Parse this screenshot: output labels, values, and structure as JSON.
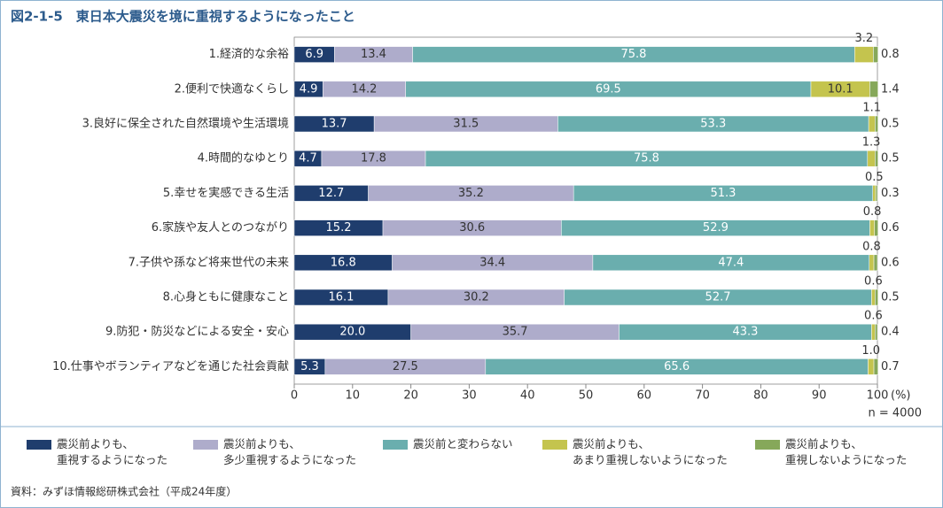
{
  "chart_data": {
    "type": "stacked-bar-horizontal",
    "title": "図2-1-5　東日本大震災を境に重視するようになったこと",
    "categories": [
      "1.経済的な余裕",
      "2.便利で快適なくらし",
      "3.良好に保全された自然環境や生活環境",
      "4.時間的なゆとり",
      "5.幸せを実感できる生活",
      "6.家族や友人とのつながり",
      "7.子供や孫など将来世代の未来",
      "8.心身ともに健康なこと",
      "9.防犯・防災などによる安全・安心",
      "10.仕事やボランティアなどを通じた社会貢献"
    ],
    "series": [
      {
        "name": "震災前よりも、\n重視するようになった",
        "color": "#1f3d6d",
        "values": [
          6.9,
          4.9,
          13.7,
          4.7,
          12.7,
          15.2,
          16.8,
          16.1,
          20.0,
          5.3
        ],
        "value_labels": [
          "6.9",
          "4.9",
          "13.7",
          "4.7",
          "12.7",
          "15.2",
          "16.8",
          "16.1",
          "20.0",
          "5.3"
        ]
      },
      {
        "name": "震災前よりも、\n多少重視するようになった",
        "color": "#aeaccb",
        "values": [
          13.4,
          14.2,
          31.5,
          17.8,
          35.2,
          30.6,
          34.4,
          30.2,
          35.7,
          27.5
        ],
        "value_labels": [
          "13.4",
          "14.2",
          "31.5",
          "17.8",
          "35.2",
          "30.6",
          "34.4",
          "30.2",
          "35.7",
          "27.5"
        ]
      },
      {
        "name": "震災前と変わらない",
        "color": "#6aaeae",
        "values": [
          75.8,
          69.5,
          53.3,
          75.8,
          51.3,
          52.9,
          47.4,
          52.7,
          43.3,
          65.6
        ],
        "value_labels": [
          "75.8",
          "69.5",
          "53.3",
          "75.8",
          "51.3",
          "52.9",
          "47.4",
          "52.7",
          "43.3",
          "65.6"
        ]
      },
      {
        "name": "震災前よりも、\nあまり重視しないようになった",
        "color": "#c4c44e",
        "values": [
          3.2,
          10.1,
          1.1,
          1.3,
          0.5,
          0.8,
          0.8,
          0.6,
          0.6,
          1.0
        ],
        "value_labels": [
          "3.2",
          "10.1",
          "1.1",
          "1.3",
          "0.5",
          "0.8",
          "0.8",
          "0.6",
          "0.6",
          "1.0"
        ]
      },
      {
        "name": "震災前よりも、\n重視しないようになった",
        "color": "#86a85a",
        "values": [
          0.8,
          1.4,
          0.5,
          0.5,
          0.3,
          0.6,
          0.6,
          0.5,
          0.4,
          0.7
        ],
        "value_labels": [
          "0.8",
          "1.4",
          "0.5",
          "0.5",
          "0.3",
          "0.6",
          "0.6",
          "0.5",
          "0.4",
          "0.7"
        ]
      }
    ],
    "xlim": [
      0,
      100
    ],
    "xticks": [
      0,
      10,
      20,
      30,
      40,
      50,
      60,
      70,
      80,
      90,
      100
    ],
    "xlabel": "(%)",
    "note": "n = 4000",
    "source": "資料：みずほ情報総研株式会社（平成24年度）",
    "grid": false
  }
}
